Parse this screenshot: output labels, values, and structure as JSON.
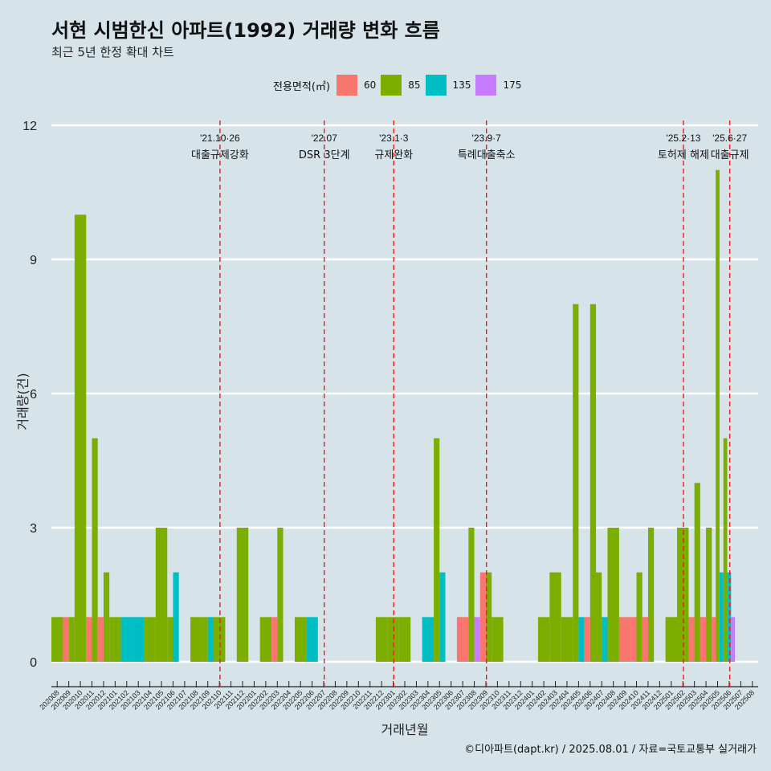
{
  "title": "서현 시범한신 아파트(1992) 거래량 변화 흐름",
  "subtitle": "최근 5년 한정 확대 차트",
  "caption": "©디아파트(dapt.kr) / 2025.08.01 / 자료=국토교통부 실거래가",
  "legend": {
    "title": "전용면적(㎡)",
    "items": [
      {
        "label": "60",
        "color": "#f8766d"
      },
      {
        "label": "85",
        "color": "#7cae00"
      },
      {
        "label": "135",
        "color": "#00bfc4"
      },
      {
        "label": "175",
        "color": "#c77cff"
      }
    ]
  },
  "chart_data": {
    "type": "bar",
    "xlabel": "거래년월",
    "ylabel": "거래량(건)",
    "ylim": [
      0,
      12
    ],
    "yticks": [
      0,
      3,
      6,
      9,
      12
    ],
    "grid": true,
    "legend_position": "top",
    "categories": [
      "202008",
      "202009",
      "202010",
      "202011",
      "202012",
      "202101",
      "202102",
      "202103",
      "202104",
      "202105",
      "202106",
      "202107",
      "202108",
      "202109",
      "202110",
      "202111",
      "202112",
      "202201",
      "202202",
      "202203",
      "202204",
      "202205",
      "202206",
      "202207",
      "202208",
      "202209",
      "202210",
      "202211",
      "202212",
      "202301",
      "202302",
      "202303",
      "202304",
      "202305",
      "202306",
      "202307",
      "202308",
      "202309",
      "202310",
      "202311",
      "202312",
      "202401",
      "202402",
      "202403",
      "202404",
      "202405",
      "202406",
      "202407",
      "202408",
      "202409",
      "202410",
      "202411",
      "202412",
      "202501",
      "202502",
      "202503",
      "202504",
      "202505",
      "202506",
      "202507",
      "202508"
    ],
    "series": [
      {
        "name": "60",
        "color": "#f8766d",
        "values": {
          "202009": 1,
          "202011": 1,
          "202012": 1,
          "202203": 1,
          "202307": 1,
          "202309": 2,
          "202406": 1,
          "202409": 1,
          "202410": 1,
          "202411": 1,
          "202503": 1,
          "202504": 1,
          "202505": 1
        }
      },
      {
        "name": "85",
        "color": "#7cae00",
        "values": {
          "202008": 1,
          "202009": 1,
          "202010": 10,
          "202011": 5,
          "202012": 2,
          "202101": 1,
          "202104": 1,
          "202105": 3,
          "202106": 1,
          "202108": 1,
          "202109": 1,
          "202110": 1,
          "202112": 3,
          "202202": 1,
          "202203": 3,
          "202205": 1,
          "202212": 1,
          "202301": 1,
          "202302": 1,
          "202305": 5,
          "202308": 3,
          "202309": 2,
          "202310": 1,
          "202402": 1,
          "202403": 2,
          "202404": 1,
          "202405": 8,
          "202406": 8,
          "202407": 2,
          "202408": 3,
          "202410": 2,
          "202411": 3,
          "202501": 1,
          "202502": 3,
          "202503": 4,
          "202504": 3,
          "202505": 11,
          "202506": 5
        }
      },
      {
        "name": "135",
        "color": "#00bfc4",
        "values": {
          "202102": 1,
          "202103": 1,
          "202106": 2,
          "202109": 1,
          "202206": 1,
          "202304": 1,
          "202305": 2,
          "202405": 1,
          "202407": 1,
          "202505": 2,
          "202506": 2
        }
      },
      {
        "name": "175",
        "color": "#c77cff",
        "values": {
          "202308": 1,
          "202506": 1
        }
      }
    ],
    "annotations": [
      {
        "at": "202110",
        "date": "'21.10·26",
        "text": "대출규제강화"
      },
      {
        "at": "202207",
        "date": "'22.07",
        "text": "DSR 3단계"
      },
      {
        "at": "202301",
        "date": "'23.1·3",
        "text": "규제완화"
      },
      {
        "at": "202309",
        "date": "'23.9·7",
        "text": "특례대출축소"
      },
      {
        "at": "202502",
        "date": "'25.2·13",
        "text": "토허제 해제"
      },
      {
        "at": "202506",
        "date": "'25.6·27",
        "text": "대출규제"
      }
    ]
  }
}
